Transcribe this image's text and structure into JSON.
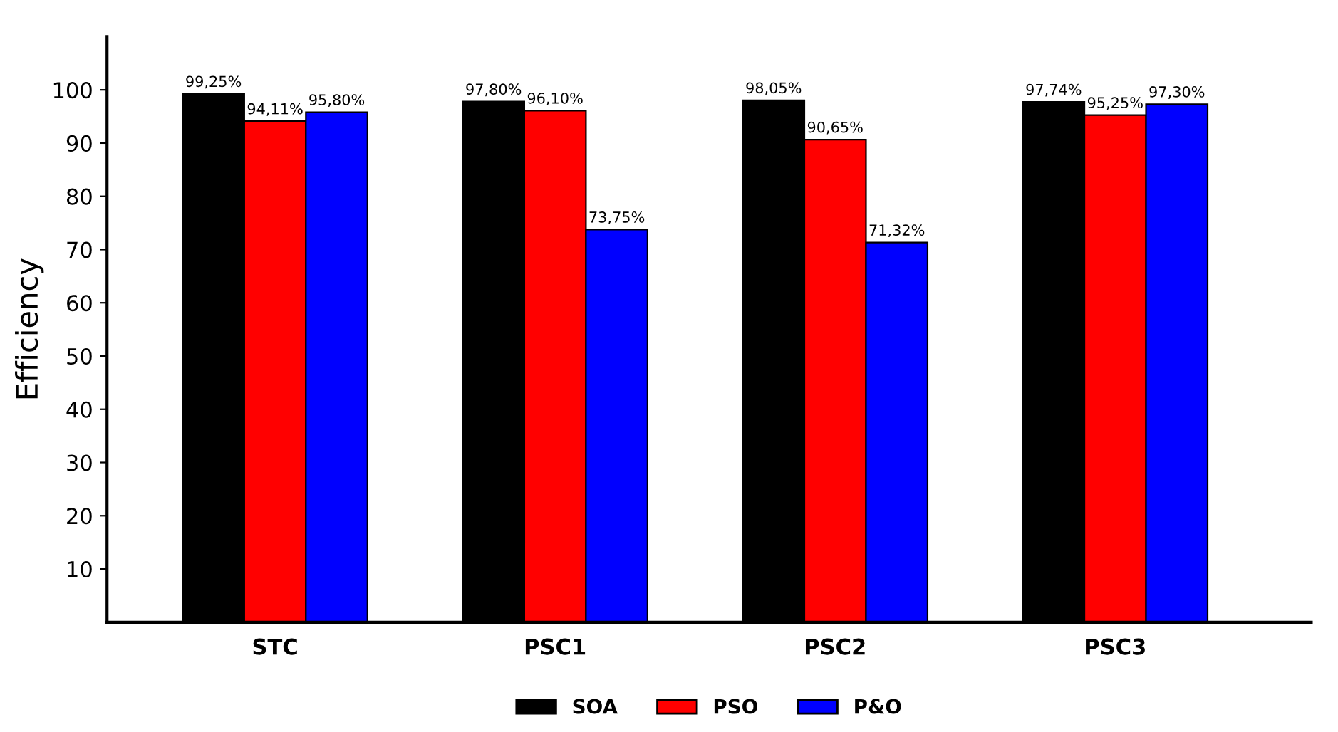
{
  "chart_data": {
    "type": "bar",
    "ylabel": "Efficiency",
    "categories": [
      "STC",
      "PSC1",
      "PSC2",
      "PSC3"
    ],
    "series": [
      {
        "name": "SOA",
        "color": "#000000",
        "values": [
          99.25,
          97.8,
          98.05,
          97.74
        ],
        "value_labels": [
          "99,25%",
          "97,80%",
          "98,05%",
          "97,74%"
        ]
      },
      {
        "name": "PSO",
        "color": "#ff0000",
        "values": [
          94.11,
          96.1,
          90.65,
          95.25
        ],
        "value_labels": [
          "94,11%",
          "96,10%",
          "90,65%",
          "95,25%"
        ]
      },
      {
        "name": "P&O",
        "color": "#0000ff",
        "values": [
          95.8,
          73.75,
          71.32,
          97.3
        ],
        "value_labels": [
          "95,80%",
          "73,75%",
          "71,32%",
          "97,30%"
        ]
      }
    ],
    "ylim": [
      0,
      110
    ],
    "yticks": [
      10,
      20,
      30,
      40,
      50,
      60,
      70,
      80,
      90,
      100
    ],
    "grid": false,
    "legend": "bottom"
  }
}
